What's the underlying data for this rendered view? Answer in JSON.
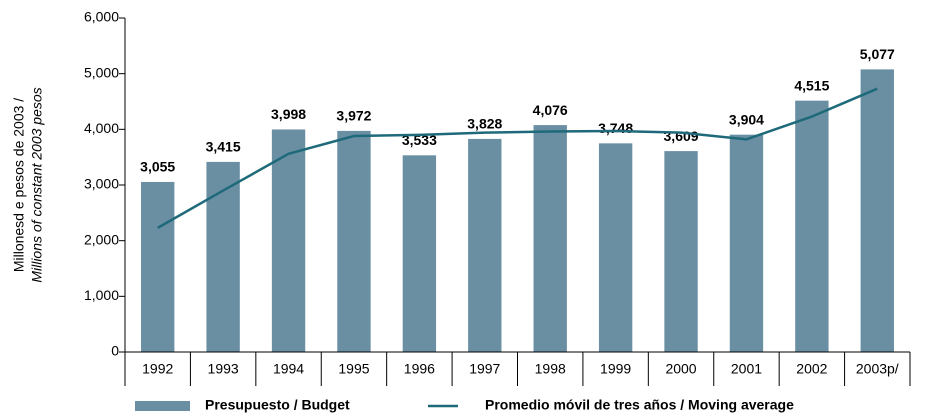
{
  "chart_data": {
    "type": "bar",
    "ylabel": [
      "Millonesd e pesos de 2003 /",
      "Millions  of constant 2003 pesos"
    ],
    "categories": [
      "1992",
      "1993",
      "1994",
      "1995",
      "1996",
      "1997",
      "1998",
      "1999",
      "2000",
      "2001",
      "2002",
      "2003p/"
    ],
    "series": [
      {
        "name": "Presupuesto / Budget",
        "type": "bar",
        "color": "#6a8fa3",
        "values": [
          3055,
          3415,
          3998,
          3972,
          3533,
          3828,
          4076,
          3748,
          3609,
          3904,
          4515,
          5077
        ],
        "value_labels": [
          "3,055",
          "3,415",
          "3,998",
          "3,972",
          "3,533",
          "3,828",
          "4,076",
          "3,748",
          "3,609",
          "3,904",
          "4,515",
          "5,077"
        ]
      },
      {
        "name": "Promedio móvil de tres años / Moving average",
        "type": "line",
        "color": "#1e6a7a",
        "values": [
          2230,
          2900,
          3560,
          3880,
          3900,
          3940,
          3960,
          3970,
          3940,
          3820,
          4230,
          4730
        ]
      }
    ],
    "ylim": [
      0,
      6000
    ],
    "yticks": [
      {
        "value": 0,
        "label": "0"
      },
      {
        "value": 1000,
        "label": "1,000"
      },
      {
        "value": 2000,
        "label": "2,000"
      },
      {
        "value": 3000,
        "label": "3,000"
      },
      {
        "value": 4000,
        "label": "4,000"
      },
      {
        "value": 5000,
        "label": "5,000"
      },
      {
        "value": 6000,
        "label": "6,000"
      }
    ],
    "legend": "bottom"
  }
}
